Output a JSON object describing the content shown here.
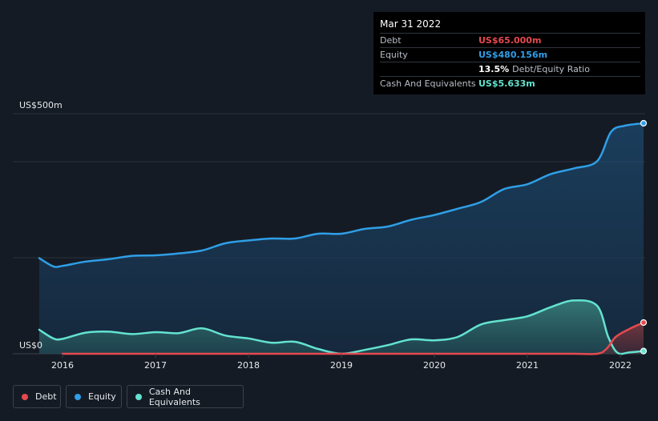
{
  "tooltip": {
    "date": "Mar 31 2022",
    "rows": [
      {
        "label": "Debt",
        "value": "US$65.000m",
        "color": "#e6494f"
      },
      {
        "label": "Equity",
        "value": "US$480.156m",
        "color": "#2f9fe7"
      },
      {
        "label": "",
        "ratio": "13.5%",
        "ratio_label": "Debt/Equity Ratio"
      },
      {
        "label": "Cash And Equivalents",
        "value": "US$5.633m",
        "color": "#63e3d0"
      }
    ]
  },
  "legend": [
    {
      "label": "Debt",
      "color": "#e6494f"
    },
    {
      "label": "Equity",
      "color": "#2f9fe7"
    },
    {
      "label": "Cash And Equivalents",
      "color": "#63e3d0"
    }
  ],
  "chart_data": {
    "type": "area",
    "title": "",
    "xlabel": "",
    "ylabel": "",
    "y_unit": "US$m",
    "ylim": [
      0,
      500
    ],
    "xlim": [
      2015.75,
      2022.25
    ],
    "y_tick_labels": [
      {
        "value": 500,
        "label": "US$500m"
      },
      {
        "value": 0,
        "label": "US$0"
      }
    ],
    "gridlines": [
      0,
      200,
      400,
      500
    ],
    "x_ticks": [
      {
        "value": 2016,
        "label": "2016"
      },
      {
        "value": 2017,
        "label": "2017"
      },
      {
        "value": 2018,
        "label": "2018"
      },
      {
        "value": 2019,
        "label": "2019"
      },
      {
        "value": 2020,
        "label": "2020"
      },
      {
        "value": 2021,
        "label": "2021"
      },
      {
        "value": 2022,
        "label": "2022"
      }
    ],
    "series": [
      {
        "name": "Equity",
        "color": "#2f9fe7",
        "points": [
          [
            2015.75,
            199
          ],
          [
            2015.9,
            182
          ],
          [
            2016.0,
            183
          ],
          [
            2016.25,
            192
          ],
          [
            2016.5,
            197
          ],
          [
            2016.75,
            204
          ],
          [
            2017.0,
            205
          ],
          [
            2017.25,
            209
          ],
          [
            2017.5,
            215
          ],
          [
            2017.75,
            230
          ],
          [
            2018.0,
            236
          ],
          [
            2018.25,
            240
          ],
          [
            2018.5,
            240
          ],
          [
            2018.75,
            250
          ],
          [
            2019.0,
            250
          ],
          [
            2019.25,
            260
          ],
          [
            2019.5,
            265
          ],
          [
            2019.75,
            279
          ],
          [
            2020.0,
            289
          ],
          [
            2020.25,
            302
          ],
          [
            2020.5,
            316
          ],
          [
            2020.75,
            343
          ],
          [
            2021.0,
            353
          ],
          [
            2021.25,
            374
          ],
          [
            2021.5,
            386
          ],
          [
            2021.75,
            401
          ],
          [
            2021.9,
            462
          ],
          [
            2022.05,
            475
          ],
          [
            2022.25,
            480
          ]
        ]
      },
      {
        "name": "Cash And Equivalents",
        "color": "#63e3d0",
        "points": [
          [
            2015.75,
            50
          ],
          [
            2015.9,
            32
          ],
          [
            2016.0,
            31
          ],
          [
            2016.25,
            44
          ],
          [
            2016.5,
            46
          ],
          [
            2016.75,
            41
          ],
          [
            2017.0,
            45
          ],
          [
            2017.25,
            43
          ],
          [
            2017.5,
            53
          ],
          [
            2017.75,
            38
          ],
          [
            2018.0,
            32
          ],
          [
            2018.25,
            23
          ],
          [
            2018.5,
            25
          ],
          [
            2018.75,
            10
          ],
          [
            2019.0,
            0
          ],
          [
            2019.25,
            8
          ],
          [
            2019.5,
            18
          ],
          [
            2019.75,
            30
          ],
          [
            2020.0,
            28
          ],
          [
            2020.25,
            35
          ],
          [
            2020.5,
            61
          ],
          [
            2020.75,
            70
          ],
          [
            2021.0,
            78
          ],
          [
            2021.25,
            97
          ],
          [
            2021.5,
            111
          ],
          [
            2021.75,
            100
          ],
          [
            2021.87,
            35
          ],
          [
            2021.97,
            2
          ],
          [
            2022.1,
            3
          ],
          [
            2022.25,
            5.6
          ]
        ]
      },
      {
        "name": "Debt",
        "color": "#e6494f",
        "points": [
          [
            2016.0,
            0
          ],
          [
            2016.5,
            0
          ],
          [
            2017.0,
            0
          ],
          [
            2017.5,
            0
          ],
          [
            2018.0,
            0
          ],
          [
            2018.5,
            0
          ],
          [
            2019.0,
            0
          ],
          [
            2019.5,
            0
          ],
          [
            2020.0,
            0
          ],
          [
            2020.5,
            0
          ],
          [
            2021.0,
            0
          ],
          [
            2021.5,
            0
          ],
          [
            2021.75,
            0
          ],
          [
            2021.85,
            10
          ],
          [
            2021.95,
            35
          ],
          [
            2022.1,
            52
          ],
          [
            2022.25,
            65
          ]
        ]
      }
    ],
    "legend_position": "bottom-left"
  }
}
